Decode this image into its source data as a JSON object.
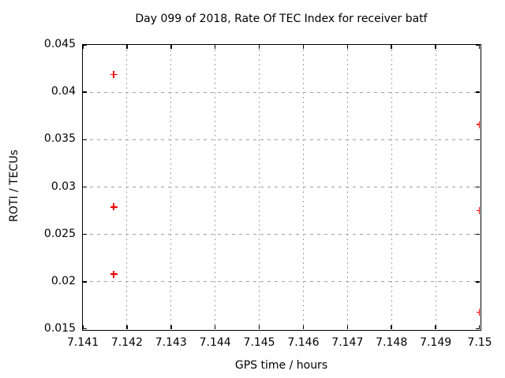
{
  "chart_data": {
    "type": "scatter",
    "title": "Day 099 of 2018, Rate Of TEC Index for receiver batf",
    "xlabel": "GPS time / hours",
    "ylabel": "ROTI / TECUs",
    "xlim": [
      7.141,
      7.15
    ],
    "ylim": [
      0.015,
      0.045
    ],
    "grid": true,
    "legend_position": "none",
    "marker": "plus",
    "marker_color": "#ee0000",
    "grid_color": "#a0a0a0",
    "xticks": [
      {
        "value": 7.141,
        "label": "7.141"
      },
      {
        "value": 7.142,
        "label": "7.142"
      },
      {
        "value": 7.143,
        "label": "7.143"
      },
      {
        "value": 7.144,
        "label": "7.144"
      },
      {
        "value": 7.145,
        "label": "7.145"
      },
      {
        "value": 7.146,
        "label": "7.146"
      },
      {
        "value": 7.147,
        "label": "7.147"
      },
      {
        "value": 7.148,
        "label": "7.148"
      },
      {
        "value": 7.149,
        "label": "7.149"
      },
      {
        "value": 7.15,
        "label": "7.15"
      }
    ],
    "yticks": [
      {
        "value": 0.015,
        "label": "0.015"
      },
      {
        "value": 0.02,
        "label": "0.02"
      },
      {
        "value": 0.025,
        "label": "0.025"
      },
      {
        "value": 0.03,
        "label": "0.03"
      },
      {
        "value": 0.035,
        "label": "0.035"
      },
      {
        "value": 0.04,
        "label": "0.04"
      },
      {
        "value": 0.045,
        "label": "0.045"
      }
    ],
    "points": [
      {
        "x": 7.1417,
        "y": 0.0419
      },
      {
        "x": 7.1417,
        "y": 0.0279
      },
      {
        "x": 7.1417,
        "y": 0.0208
      },
      {
        "x": 7.15,
        "y": 0.0366
      },
      {
        "x": 7.15,
        "y": 0.0275
      },
      {
        "x": 7.15,
        "y": 0.0168
      }
    ]
  }
}
